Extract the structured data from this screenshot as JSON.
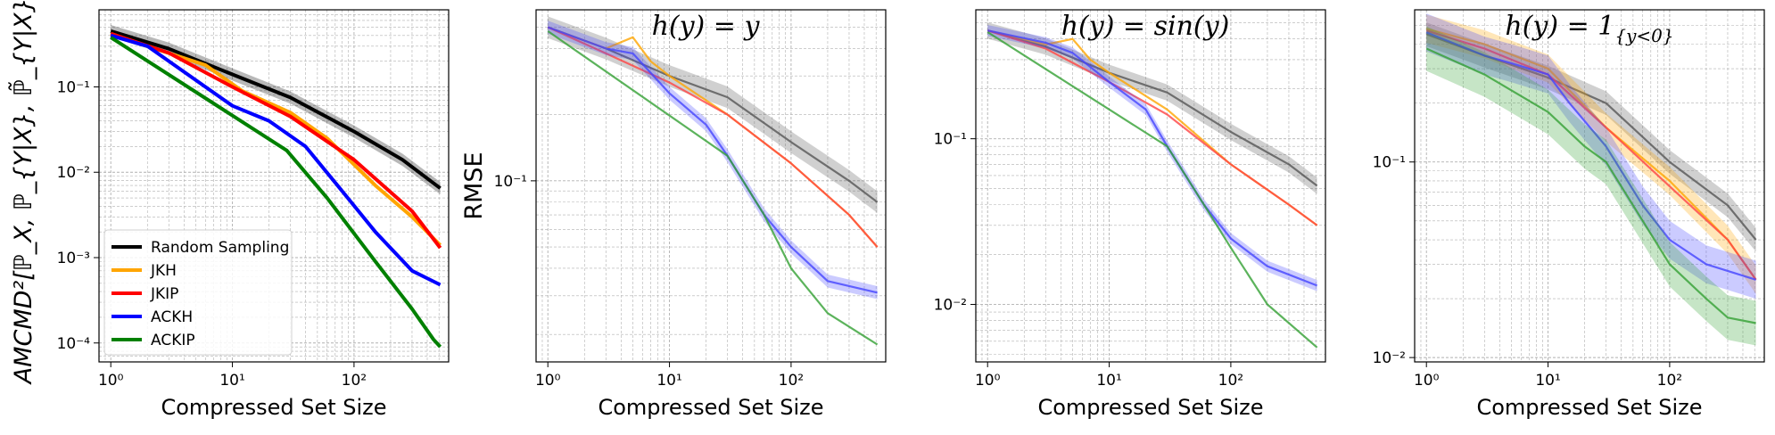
{
  "chart_data": [
    {
      "type": "line",
      "title": "",
      "xlabel": "Compressed Set Size",
      "ylabel": "AMCMD²[ℙ_X, ℙ_{Y|X}, ℙ̃_{Y|X}]",
      "xscale": "log",
      "yscale": "log",
      "xlim": [
        0.8,
        600
      ],
      "ylim": [
        6e-05,
        0.8
      ],
      "xticks": [
        {
          "v": 1,
          "label": "10⁰"
        },
        {
          "v": 10,
          "label": "10¹"
        },
        {
          "v": 100,
          "label": "10²"
        }
      ],
      "yticks": [
        {
          "v": 0.0001,
          "label": "10⁻⁴"
        },
        {
          "v": 0.001,
          "label": "10⁻³"
        },
        {
          "v": 0.01,
          "label": "10⁻²"
        },
        {
          "v": 0.1,
          "label": "10⁻¹"
        }
      ],
      "grid": true,
      "legend": "lower-left",
      "series": [
        {
          "name": "Random Sampling",
          "color": "#000000",
          "x": [
            1,
            3,
            10,
            30,
            100,
            250,
            512
          ],
          "y": [
            0.45,
            0.28,
            0.14,
            0.075,
            0.03,
            0.014,
            0.0065
          ],
          "band": 0.18
        },
        {
          "name": "JKH",
          "color": "#ffa500",
          "x": [
            1,
            2,
            6,
            12,
            30,
            60,
            150,
            300,
            512
          ],
          "y": [
            0.42,
            0.3,
            0.18,
            0.09,
            0.05,
            0.025,
            0.007,
            0.003,
            0.0014
          ]
        },
        {
          "name": "JKIP",
          "color": "#ff0000",
          "x": [
            1,
            3,
            10,
            30,
            100,
            300,
            512
          ],
          "y": [
            0.42,
            0.25,
            0.1,
            0.045,
            0.014,
            0.0035,
            0.0013
          ]
        },
        {
          "name": "ACKH",
          "color": "#0000ff",
          "x": [
            1,
            2,
            5,
            10,
            20,
            40,
            80,
            150,
            300,
            512
          ],
          "y": [
            0.4,
            0.3,
            0.12,
            0.06,
            0.04,
            0.02,
            0.006,
            0.002,
            0.0007,
            0.00048
          ]
        },
        {
          "name": "ACKIP",
          "color": "#008000",
          "x": [
            1,
            28,
            60,
            150,
            300,
            450,
            512
          ],
          "y": [
            0.38,
            0.018,
            0.005,
            0.0009,
            0.00025,
            0.00011,
            9e-05
          ]
        }
      ]
    },
    {
      "type": "line",
      "title": "h(y) = y",
      "xlabel": "Compressed Set Size",
      "ylabel": "RMSE",
      "xscale": "log",
      "yscale": "log",
      "xlim": [
        0.8,
        600
      ],
      "ylim": [
        0.015,
        0.6
      ],
      "xticks": [
        {
          "v": 1,
          "label": "10⁰"
        },
        {
          "v": 10,
          "label": "10¹"
        },
        {
          "v": 100,
          "label": "10²"
        }
      ],
      "yticks": [
        {
          "v": 0.1,
          "label": "10⁻¹"
        }
      ],
      "grid": true,
      "series": [
        {
          "name": "Random Sampling",
          "color": "#555555",
          "x": [
            1,
            3,
            10,
            30,
            100,
            300,
            512
          ],
          "y": [
            0.5,
            0.4,
            0.3,
            0.24,
            0.15,
            0.1,
            0.08
          ],
          "band": 0.12
        },
        {
          "name": "JKH",
          "color": "#ffa500",
          "x": [
            1,
            3,
            5,
            7,
            10,
            30,
            100,
            300,
            512
          ],
          "y": [
            0.5,
            0.4,
            0.45,
            0.35,
            0.3,
            0.2,
            0.12,
            0.07,
            0.05
          ]
        },
        {
          "name": "JKIP",
          "color": "#ff4444",
          "x": [
            1,
            3,
            10,
            30,
            100,
            300,
            512
          ],
          "y": [
            0.5,
            0.38,
            0.28,
            0.2,
            0.12,
            0.07,
            0.05
          ]
        },
        {
          "name": "ACKH",
          "color": "#4444ff",
          "x": [
            1,
            3,
            5,
            10,
            20,
            30,
            60,
            100,
            200,
            512
          ],
          "y": [
            0.5,
            0.4,
            0.38,
            0.25,
            0.18,
            0.13,
            0.07,
            0.05,
            0.035,
            0.031
          ],
          "band": 0.07
        },
        {
          "name": "ACKIP",
          "color": "#33a033",
          "x": [
            1,
            30,
            60,
            100,
            200,
            512
          ],
          "y": [
            0.48,
            0.13,
            0.07,
            0.04,
            0.025,
            0.018
          ]
        }
      ]
    },
    {
      "type": "line",
      "title": "h(y) = sin(y)",
      "xlabel": "Compressed Set Size",
      "ylabel": "",
      "xscale": "log",
      "yscale": "log",
      "xlim": [
        0.8,
        600
      ],
      "ylim": [
        0.0045,
        0.6
      ],
      "xticks": [
        {
          "v": 1,
          "label": "10⁰"
        },
        {
          "v": 10,
          "label": "10¹"
        },
        {
          "v": 100,
          "label": "10²"
        }
      ],
      "yticks": [
        {
          "v": 0.01,
          "label": "10⁻²"
        },
        {
          "v": 0.1,
          "label": "10⁻¹"
        }
      ],
      "grid": true,
      "series": [
        {
          "name": "Random Sampling",
          "color": "#555555",
          "x": [
            1,
            3,
            10,
            30,
            100,
            300,
            512
          ],
          "y": [
            0.45,
            0.36,
            0.25,
            0.19,
            0.11,
            0.07,
            0.052
          ],
          "band": 0.12
        },
        {
          "name": "JKH",
          "color": "#ffa500",
          "x": [
            1,
            3,
            5,
            7,
            10,
            30,
            100,
            300,
            512
          ],
          "y": [
            0.45,
            0.37,
            0.4,
            0.3,
            0.25,
            0.15,
            0.07,
            0.04,
            0.03
          ]
        },
        {
          "name": "JKIP",
          "color": "#ff4444",
          "x": [
            1,
            3,
            10,
            30,
            100,
            300,
            512
          ],
          "y": [
            0.45,
            0.35,
            0.22,
            0.14,
            0.07,
            0.04,
            0.03
          ]
        },
        {
          "name": "ACKH",
          "color": "#4444ff",
          "x": [
            1,
            3,
            5,
            10,
            20,
            30,
            60,
            100,
            200,
            512
          ],
          "y": [
            0.45,
            0.38,
            0.33,
            0.22,
            0.15,
            0.09,
            0.04,
            0.025,
            0.017,
            0.013
          ],
          "band": 0.08
        },
        {
          "name": "ACKIP",
          "color": "#33a033",
          "x": [
            1,
            30,
            60,
            100,
            200,
            512
          ],
          "y": [
            0.44,
            0.09,
            0.04,
            0.022,
            0.01,
            0.0055
          ]
        }
      ]
    },
    {
      "type": "line",
      "title": "h(y) = 1{y<0}",
      "xlabel": "Compressed Set Size",
      "ylabel": "",
      "xscale": "log",
      "yscale": "log",
      "xlim": [
        0.8,
        600
      ],
      "ylim": [
        0.0095,
        0.6
      ],
      "xticks": [
        {
          "v": 1,
          "label": "10⁰"
        },
        {
          "v": 10,
          "label": "10¹"
        },
        {
          "v": 100,
          "label": "10²"
        }
      ],
      "yticks": [
        {
          "v": 0.01,
          "label": "10⁻²"
        },
        {
          "v": 0.1,
          "label": "10⁻¹"
        }
      ],
      "grid": true,
      "series": [
        {
          "name": "Random Sampling",
          "color": "#555555",
          "x": [
            1,
            3,
            10,
            30,
            100,
            300,
            512
          ],
          "y": [
            0.45,
            0.35,
            0.27,
            0.2,
            0.1,
            0.06,
            0.04
          ],
          "band": 0.15
        },
        {
          "name": "JKH",
          "color": "#ffa500",
          "x": [
            1,
            3,
            10,
            30,
            100,
            300,
            512
          ],
          "y": [
            0.48,
            0.4,
            0.3,
            0.15,
            0.08,
            0.04,
            0.025
          ],
          "band": 0.18
        },
        {
          "name": "JKIP",
          "color": "#ff4444",
          "x": [
            1,
            3,
            10,
            30,
            100,
            300,
            512
          ],
          "y": [
            0.47,
            0.38,
            0.28,
            0.15,
            0.075,
            0.04,
            0.025
          ]
        },
        {
          "name": "ACKH",
          "color": "#4444ff",
          "x": [
            1,
            3,
            5,
            10,
            15,
            30,
            60,
            100,
            200,
            512
          ],
          "y": [
            0.46,
            0.35,
            0.32,
            0.28,
            0.2,
            0.12,
            0.06,
            0.04,
            0.03,
            0.025
          ],
          "band": 0.25
        },
        {
          "name": "ACKIP",
          "color": "#33a033",
          "x": [
            1,
            3,
            10,
            20,
            30,
            60,
            100,
            200,
            300,
            512
          ],
          "y": [
            0.38,
            0.28,
            0.18,
            0.12,
            0.1,
            0.05,
            0.03,
            0.02,
            0.016,
            0.015
          ],
          "band": 0.3
        }
      ]
    }
  ]
}
